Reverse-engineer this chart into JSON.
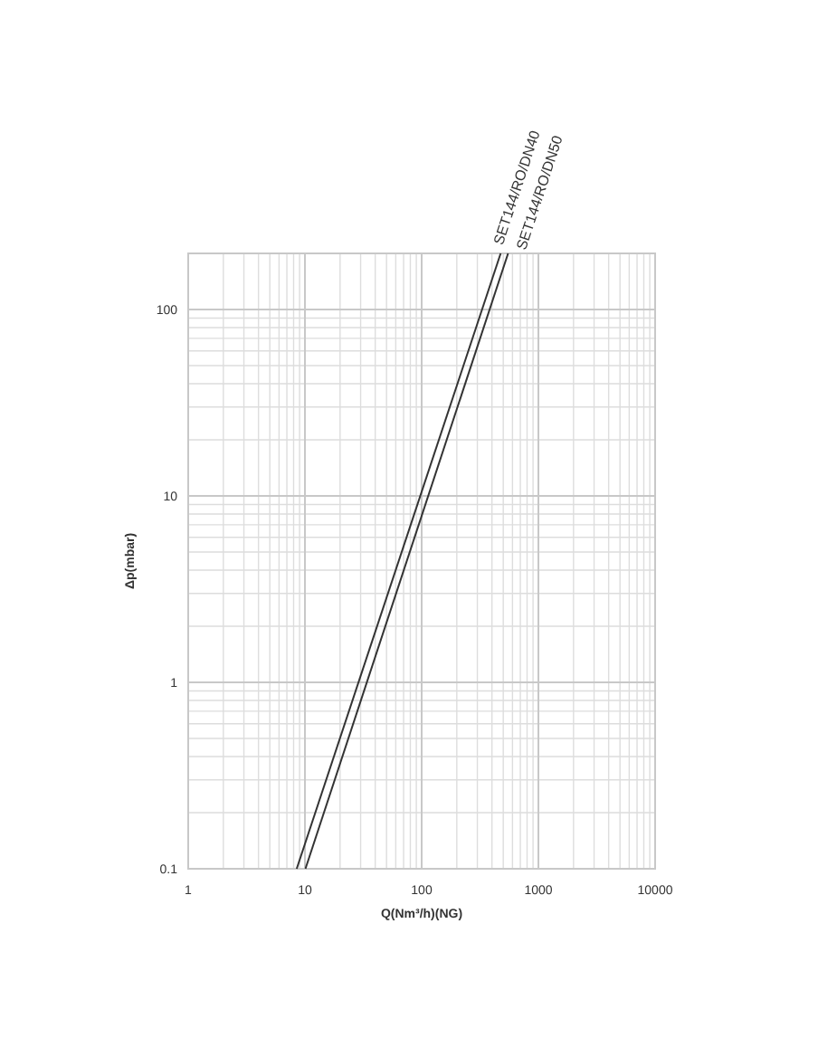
{
  "chart_data": {
    "type": "line",
    "xlabel": "Q(Nm³/h)(NG)",
    "ylabel": "Δp(mbar)",
    "log": "xy",
    "grid": true,
    "xlim": [
      1,
      10000
    ],
    "xticks": [
      1,
      10,
      100,
      1000,
      10000
    ],
    "ylim": [
      0.1,
      200
    ],
    "yticks": [
      0.1,
      1,
      10,
      100
    ],
    "marker": "none",
    "line_style": "solid",
    "series": [
      {
        "name": "SET144/RO/DN40",
        "color": "#333333",
        "x": [
          8.5,
          475
        ],
        "values": [
          0.1,
          200
        ]
      },
      {
        "name": "SET144/RO/DN50",
        "color": "#333333",
        "x": [
          10.1,
          550
        ],
        "values": [
          0.1,
          200
        ]
      }
    ]
  }
}
